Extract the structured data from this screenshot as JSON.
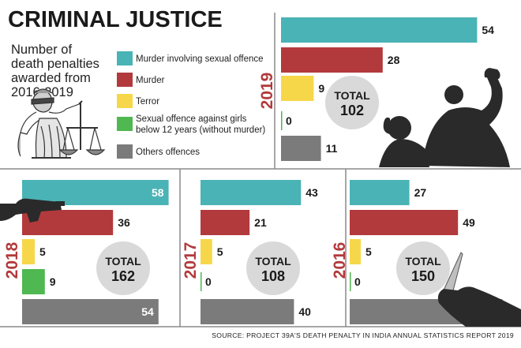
{
  "title": "CRIMINAL JUSTICE",
  "subtitle_lines": [
    "Number of",
    "death penalties",
    "awarded from",
    "2016-2019"
  ],
  "legend": [
    {
      "lines": [
        "Murder involving sexual offence"
      ],
      "color": "#4ab3b5"
    },
    {
      "lines": [
        "Murder"
      ],
      "color": "#b23a3c"
    },
    {
      "lines": [
        "Terror"
      ],
      "color": "#f7d74a"
    },
    {
      "lines": [
        "Sexual offence against girls",
        "below 12 years (without murder)"
      ],
      "color": "#4fb850"
    },
    {
      "lines": [
        "Others offences"
      ],
      "color": "#7b7b7b"
    }
  ],
  "total_label": "TOTAL",
  "source": "SOURCE: PROJECT 39A'S DEATH PENALTY IN INDIA ANNUAL STATISTICS REPORT 2019",
  "icons": [
    "justice-statue-icon",
    "attacker-silhouette-icon",
    "gun-hand-icon",
    "knife-hand-icon"
  ],
  "chart_data": [
    {
      "type": "bar",
      "orientation": "horizontal",
      "year": "2019",
      "categories": [
        "Murder involving sexual offence",
        "Murder",
        "Terror",
        "Sexual offence against girls below 12 years (without murder)",
        "Others offences"
      ],
      "values": [
        54,
        28,
        9,
        0,
        11
      ],
      "total": 102
    },
    {
      "type": "bar",
      "orientation": "horizontal",
      "year": "2018",
      "categories": [
        "Murder involving sexual offence",
        "Murder",
        "Terror",
        "Sexual offence against girls below 12 years (without murder)",
        "Others offences"
      ],
      "values": [
        58,
        36,
        5,
        9,
        54
      ],
      "total": 162
    },
    {
      "type": "bar",
      "orientation": "horizontal",
      "year": "2017",
      "categories": [
        "Murder involving sexual offence",
        "Murder",
        "Terror",
        "Sexual offence against girls below 12 years (without murder)",
        "Others offences"
      ],
      "values": [
        43,
        21,
        5,
        0,
        40
      ],
      "total": 108
    },
    {
      "type": "bar",
      "orientation": "horizontal",
      "year": "2016",
      "categories": [
        "Murder involving sexual offence",
        "Murder",
        "Terror",
        "Sexual offence against girls below 12 years (without murder)",
        "Others offences"
      ],
      "values": [
        27,
        49,
        5,
        0,
        69
      ],
      "total": 150
    }
  ]
}
